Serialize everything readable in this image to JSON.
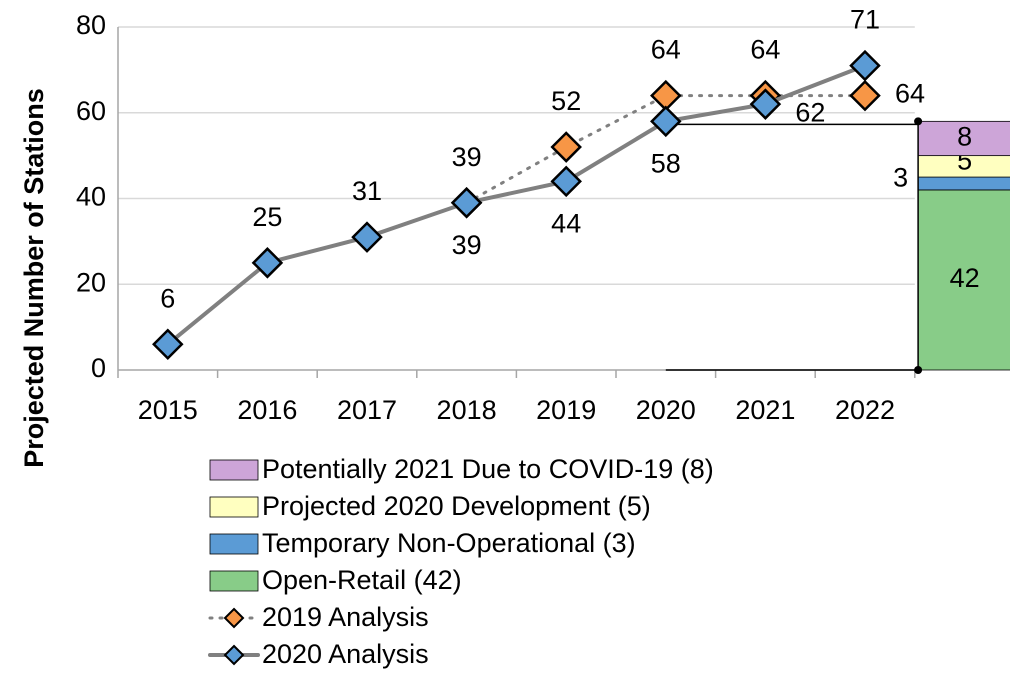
{
  "chart_data": {
    "type": "line",
    "ylabel": "Projected Number of  Stations",
    "categories": [
      "2015",
      "2016",
      "2017",
      "2018",
      "2019",
      "2020",
      "2021",
      "2022",
      null
    ],
    "ylim": [
      0,
      80
    ],
    "yticks": [
      0,
      20,
      40,
      60,
      80
    ],
    "grid": true,
    "series": [
      {
        "name": "Potentially 2021 Due to COVID-19 (8)",
        "kind": "bar",
        "color": "#cda5d8",
        "values": [
          null,
          null,
          null,
          null,
          null,
          null,
          null,
          null,
          8
        ]
      },
      {
        "name": "Projected 2020 Development (5)",
        "kind": "bar",
        "color": "#ffffc0",
        "values": [
          null,
          null,
          null,
          null,
          null,
          null,
          null,
          null,
          5
        ]
      },
      {
        "name": "Temporary Non-Operational (3)",
        "kind": "bar",
        "color": "#5b9bd5",
        "values": [
          null,
          null,
          null,
          null,
          null,
          null,
          null,
          null,
          3
        ]
      },
      {
        "name": "Open-Retail (42)",
        "kind": "bar",
        "color": "#88cc88",
        "values": [
          null,
          null,
          null,
          null,
          null,
          null,
          null,
          null,
          42
        ]
      },
      {
        "name": "2019 Analysis",
        "kind": "line",
        "dashed": true,
        "color": "#808080",
        "marker_color": "#f79646",
        "values": [
          null,
          null,
          null,
          39,
          52,
          64,
          64,
          64,
          null
        ]
      },
      {
        "name": "2020 Analysis",
        "kind": "line",
        "dashed": false,
        "color": "#808080",
        "marker_color": "#5b9bd5",
        "values": [
          6,
          25,
          31,
          39,
          44,
          58,
          62,
          71,
          null
        ]
      }
    ]
  }
}
